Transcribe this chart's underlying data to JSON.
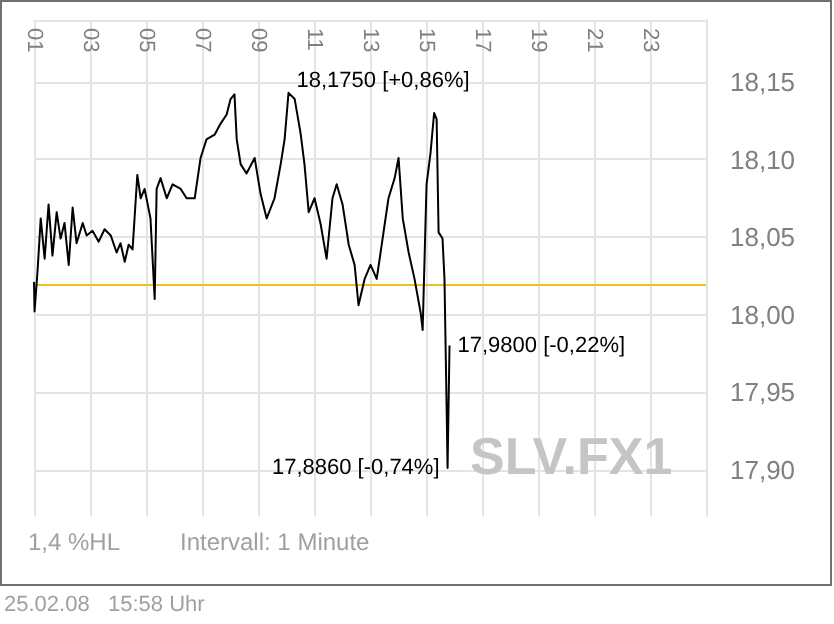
{
  "chart_data": {
    "type": "line",
    "x": [
      1.0,
      1.02,
      1.13,
      1.24,
      1.38,
      1.52,
      1.66,
      1.81,
      1.95,
      2.09,
      2.24,
      2.38,
      2.52,
      2.74,
      2.88,
      3.09,
      3.31,
      3.52,
      3.74,
      3.95,
      4.09,
      4.24,
      4.38,
      4.52,
      4.69,
      4.81,
      4.95,
      5.16,
      5.31,
      5.38,
      5.52,
      5.74,
      5.95,
      6.24,
      6.45,
      6.74,
      6.95,
      7.16,
      7.45,
      7.66,
      7.88,
      8.02,
      8.16,
      8.24,
      8.38,
      8.59,
      8.88,
      9.09,
      9.31,
      9.59,
      9.81,
      9.95,
      10.09,
      10.31,
      10.52,
      10.66,
      10.81,
      11.02,
      11.24,
      11.45,
      11.66,
      11.81,
      12.02,
      12.24,
      12.45,
      12.59,
      12.81,
      13.02,
      13.24,
      13.45,
      13.66,
      13.88,
      14.02,
      14.17,
      14.38,
      14.59,
      14.81,
      14.88,
      15.02,
      15.16,
      15.29,
      15.38,
      15.45,
      15.59,
      15.66,
      15.74,
      15.77,
      15.84
    ],
    "series": [
      {
        "color": "#000000",
        "values": [
          18.021,
          18.002,
          18.029,
          18.062,
          18.036,
          18.071,
          18.038,
          18.066,
          18.049,
          18.059,
          18.032,
          18.069,
          18.046,
          18.059,
          18.051,
          18.054,
          18.047,
          18.055,
          18.051,
          18.04,
          18.046,
          18.034,
          18.045,
          18.042,
          18.09,
          18.075,
          18.081,
          18.062,
          18.01,
          18.081,
          18.088,
          18.075,
          18.084,
          18.081,
          18.075,
          18.075,
          18.101,
          18.113,
          18.116,
          18.123,
          18.129,
          18.139,
          18.142,
          18.113,
          18.097,
          18.091,
          18.101,
          18.078,
          18.062,
          18.075,
          18.097,
          18.113,
          18.143,
          18.139,
          18.117,
          18.097,
          18.066,
          18.075,
          18.058,
          18.036,
          18.075,
          18.084,
          18.071,
          18.045,
          18.032,
          18.006,
          18.023,
          18.032,
          18.023,
          18.049,
          18.075,
          18.088,
          18.101,
          18.062,
          18.04,
          18.023,
          18.001,
          17.99,
          18.084,
          18.104,
          18.13,
          18.126,
          18.053,
          18.049,
          18.023,
          17.936,
          17.901,
          17.98
        ]
      }
    ],
    "xlim": [
      1,
      25
    ],
    "xticks": [
      {
        "value": 1,
        "label": "01"
      },
      {
        "value": 3,
        "label": "03"
      },
      {
        "value": 5,
        "label": "05"
      },
      {
        "value": 7,
        "label": "07"
      },
      {
        "value": 9,
        "label": "09"
      },
      {
        "value": 11,
        "label": "11"
      },
      {
        "value": 13,
        "label": "13"
      },
      {
        "value": 15,
        "label": "15"
      },
      {
        "value": 17,
        "label": "17"
      },
      {
        "value": 19,
        "label": "19"
      },
      {
        "value": 21,
        "label": "21"
      },
      {
        "value": 23,
        "label": "23"
      },
      {
        "value": 25,
        "label": null
      }
    ],
    "ylim": [
      17.87,
      18.19
    ],
    "yticks": [
      {
        "value": 17.9,
        "label": "17,90"
      },
      {
        "value": 17.95,
        "label": "17,95"
      },
      {
        "value": 18,
        "label": "18,00"
      },
      {
        "value": 18.05,
        "label": "18,05"
      },
      {
        "value": 18.1,
        "label": "18,10"
      },
      {
        "value": 18.15,
        "label": "18,15"
      }
    ],
    "grid": true,
    "marker": "none",
    "line_style": "solid",
    "ref_lines": [
      {
        "axis": "y",
        "value": 18.02,
        "color": "#f0c020"
      }
    ],
    "annotations": [
      "18,1750 [+0,86%]",
      "17,8860 [-0,74%]",
      "17,9800 [-0,22%]",
      "SLV.FX1",
      "1,4 %HL",
      "Intervall: 1 Minute",
      "25.02.08   15:58 Uhr"
    ]
  }
}
